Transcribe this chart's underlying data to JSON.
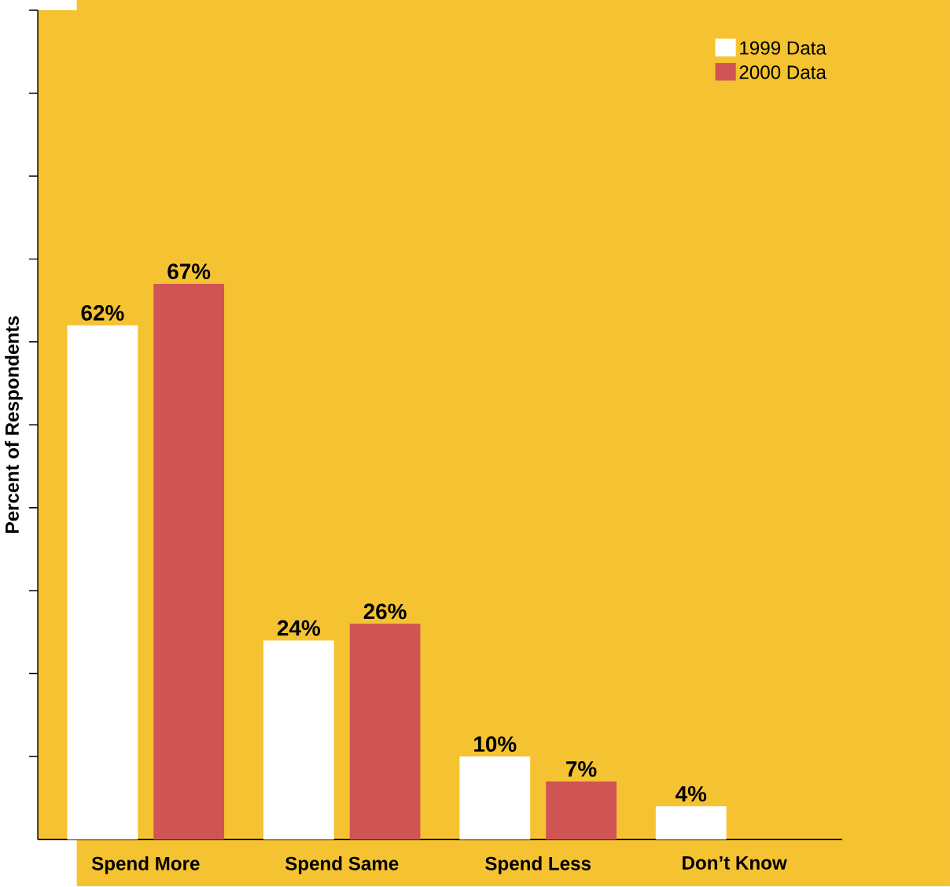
{
  "chart_data": {
    "type": "bar",
    "ylabel": "Percent of Respondents",
    "categories": [
      "Spend More",
      "Spend Same",
      "Spend Less",
      "Don’t Know"
    ],
    "series": [
      {
        "name": "1999 Data",
        "color": "#ffffff",
        "values": [
          62,
          24,
          10,
          4
        ],
        "value_labels": [
          "62%",
          "24%",
          "10%",
          "4%"
        ]
      },
      {
        "name": "2000 Data",
        "color": "#d05454",
        "values": [
          67,
          26,
          7,
          null
        ],
        "value_labels": [
          "67%",
          "26%",
          "7%",
          null
        ]
      }
    ],
    "ylim": [
      0,
      100
    ],
    "yticks": [
      {
        "value": 10,
        "label": null
      },
      {
        "value": 20,
        "label": null
      },
      {
        "value": 30,
        "label": null
      },
      {
        "value": 40,
        "label": null
      },
      {
        "value": 50,
        "label": null
      },
      {
        "value": 60,
        "label": null
      },
      {
        "value": 70,
        "label": null
      },
      {
        "value": 80,
        "label": null
      },
      {
        "value": 90,
        "label": null
      },
      {
        "value": 100,
        "label": null
      }
    ],
    "tick_labels": "x",
    "legend": "top right",
    "grid": false
  }
}
